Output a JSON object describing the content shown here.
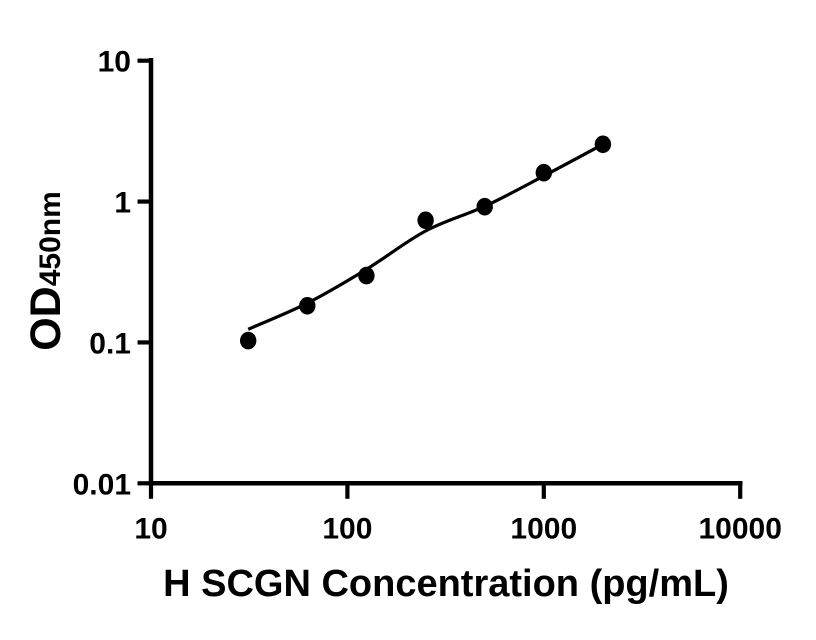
{
  "figure": {
    "background_color": "#ffffff",
    "ink_color": "#000000"
  },
  "chart_data": {
    "type": "scatter",
    "title": "",
    "xlabel": "H SCGN Concentration (pg/mL)",
    "ylabel": "OD",
    "ylabel_subscript": "450nm",
    "x_scale": "log",
    "y_scale": "log",
    "xlim": [
      10,
      10000
    ],
    "ylim": [
      0.01,
      10
    ],
    "x_ticks": [
      10,
      100,
      1000,
      10000
    ],
    "x_tick_labels": [
      "10",
      "100",
      "1000",
      "10000"
    ],
    "y_ticks": [
      10,
      1,
      0.1,
      0.01
    ],
    "y_tick_labels": [
      "10",
      "1",
      "0.1",
      "0.01"
    ],
    "grid": false,
    "legend": "none",
    "series": [
      {
        "name": "standard-data-points",
        "type": "scatter",
        "marker": "filled-circle",
        "color": "#000000",
        "x": [
          31.25,
          62.5,
          125,
          250,
          500,
          1000,
          2000
        ],
        "y": [
          0.103,
          0.182,
          0.298,
          0.736,
          0.919,
          1.603,
          2.548
        ]
      },
      {
        "name": "fit-curve",
        "type": "line",
        "color": "#000000",
        "x": [
          31.25,
          62.5,
          125,
          250,
          500,
          1000,
          2000
        ],
        "y": [
          0.124,
          0.19,
          0.33,
          0.618,
          0.925,
          1.52,
          2.55
        ]
      }
    ]
  }
}
